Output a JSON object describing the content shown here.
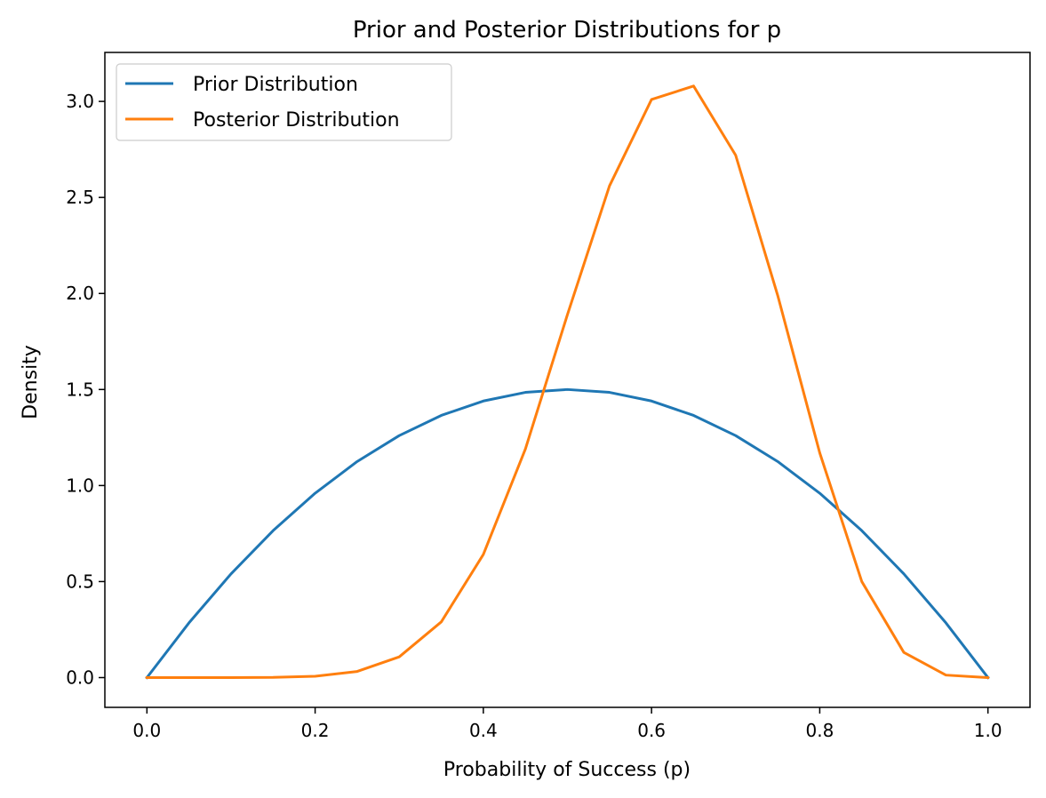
{
  "chart_data": {
    "type": "line",
    "title": "Prior and Posterior Distributions for p",
    "xlabel": "Probability of Success (p)",
    "ylabel": "Density",
    "xlim": [
      -0.05,
      1.05
    ],
    "ylim": [
      -0.155,
      3.255
    ],
    "x_ticks": [
      {
        "value": 0.0,
        "label": "0.0"
      },
      {
        "value": 0.2,
        "label": "0.2"
      },
      {
        "value": 0.4,
        "label": "0.4"
      },
      {
        "value": 0.6,
        "label": "0.6"
      },
      {
        "value": 0.8,
        "label": "0.8"
      },
      {
        "value": 1.0,
        "label": "1.0"
      }
    ],
    "y_ticks": [
      {
        "value": 0.0,
        "label": "0.0"
      },
      {
        "value": 0.5,
        "label": "0.5"
      },
      {
        "value": 1.0,
        "label": "1.0"
      },
      {
        "value": 1.5,
        "label": "1.5"
      },
      {
        "value": 2.0,
        "label": "2.0"
      },
      {
        "value": 2.5,
        "label": "2.5"
      },
      {
        "value": 3.0,
        "label": "3.0"
      }
    ],
    "grid": false,
    "legend_position": "top-left",
    "x": [
      0.0,
      0.05,
      0.1,
      0.15,
      0.2,
      0.25,
      0.3,
      0.35,
      0.4,
      0.45,
      0.5,
      0.55,
      0.6,
      0.65,
      0.7,
      0.75,
      0.8,
      0.85,
      0.9,
      0.95,
      1.0
    ],
    "series": [
      {
        "name": "Prior Distribution",
        "color": "#1f77b4",
        "values": [
          0.0,
          0.285,
          0.54,
          0.765,
          0.96,
          1.125,
          1.26,
          1.365,
          1.44,
          1.485,
          1.5,
          1.485,
          1.44,
          1.365,
          1.26,
          1.125,
          0.96,
          0.765,
          0.54,
          0.285,
          0.0
        ]
      },
      {
        "name": "Posterior Distribution",
        "color": "#ff7f0e",
        "values": [
          0.0,
          0.0,
          0.0,
          0.001,
          0.007,
          0.032,
          0.108,
          0.29,
          0.641,
          1.19,
          1.89,
          2.56,
          3.01,
          3.08,
          2.72,
          1.99,
          1.17,
          0.5,
          0.131,
          0.013,
          0.0
        ]
      }
    ]
  }
}
